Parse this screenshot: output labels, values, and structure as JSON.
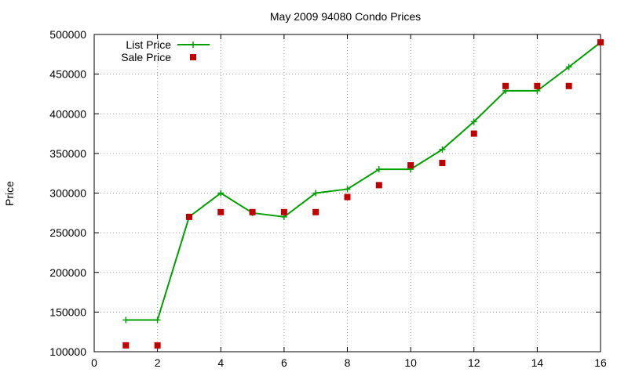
{
  "chart_data": {
    "type": "line",
    "title": "May 2009 94080 Condo Prices",
    "xlabel": "",
    "ylabel": "Price",
    "xlim": [
      0,
      16
    ],
    "ylim": [
      100000,
      500000
    ],
    "x_ticks": [
      0,
      2,
      4,
      6,
      8,
      10,
      12,
      14,
      16
    ],
    "y_ticks": [
      100000,
      150000,
      200000,
      250000,
      300000,
      350000,
      400000,
      450000,
      500000
    ],
    "grid": true,
    "legend_position": "top-left",
    "series": [
      {
        "name": "List Price",
        "style": "line-plus",
        "color": "#00a000",
        "x": [
          1,
          2,
          3,
          4,
          5,
          6,
          7,
          8,
          9,
          10,
          11,
          12,
          13,
          14,
          15,
          16
        ],
        "y": [
          140000,
          140000,
          270000,
          300000,
          275000,
          270000,
          300000,
          305000,
          330000,
          330000,
          355000,
          390000,
          429000,
          429000,
          459000,
          490000
        ]
      },
      {
        "name": "Sale Price",
        "style": "square-points",
        "color": "#c00000",
        "x": [
          1,
          2,
          3,
          4,
          5,
          6,
          7,
          8,
          9,
          10,
          11,
          12,
          13,
          14,
          15,
          16
        ],
        "y": [
          108000,
          108000,
          270000,
          276000,
          276000,
          276000,
          276000,
          295000,
          310000,
          335000,
          338000,
          375000,
          435000,
          435000,
          435000,
          490000
        ]
      }
    ]
  }
}
